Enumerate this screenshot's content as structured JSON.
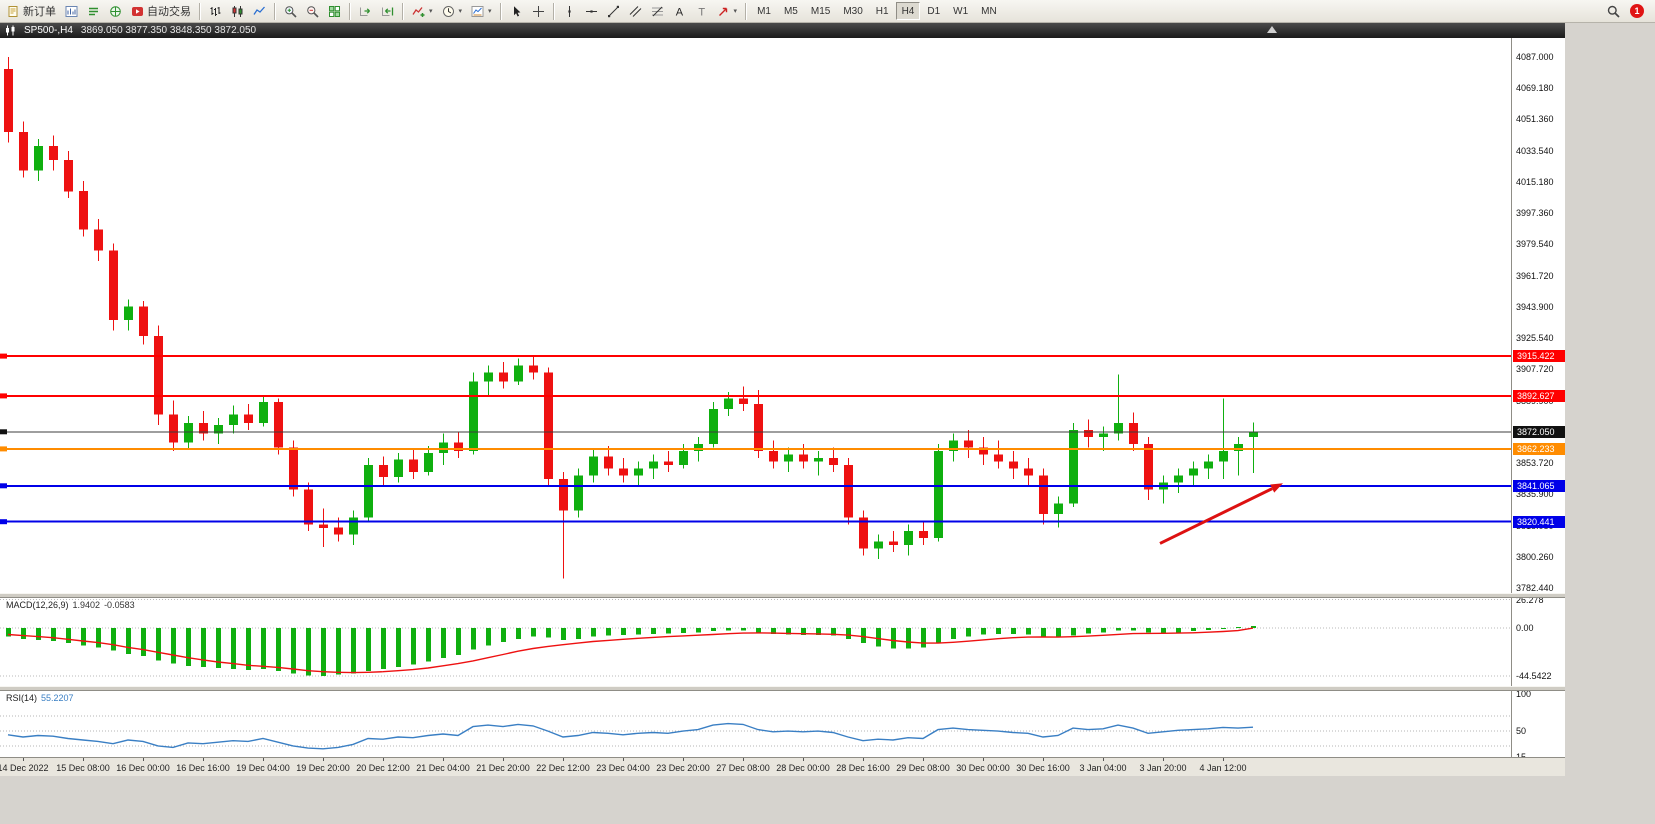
{
  "ui": {
    "toolbar": {
      "items": [
        {
          "name": "new-order-button",
          "icon": "new-order",
          "label": "新订单"
        },
        {
          "name": "chart-window-button",
          "icon": "chart-window"
        },
        {
          "name": "market-watch-button",
          "icon": "market-watch"
        },
        {
          "name": "navigator-button",
          "icon": "navigator"
        },
        {
          "name": "autotrading-button",
          "icon": "autotrading",
          "label": "自动交易"
        },
        {
          "sep": true
        },
        {
          "name": "bar-chart-button",
          "icon": "bars"
        },
        {
          "name": "candlestick-chart-button",
          "icon": "candles"
        },
        {
          "name": "line-chart-button",
          "icon": "line"
        },
        {
          "sep": true
        },
        {
          "name": "zoom-in-button",
          "icon": "zoom-in"
        },
        {
          "name": "zoom-out-button",
          "icon": "zoom-out"
        },
        {
          "name": "tile-windows-button",
          "icon": "tile"
        },
        {
          "sep": true
        },
        {
          "name": "auto-scroll-button",
          "icon": "auto-scroll"
        },
        {
          "name": "chart-shift-button",
          "icon": "chart-shift"
        },
        {
          "sep": true
        },
        {
          "name": "indicators-button",
          "icon": "indicators",
          "dropdown": true
        },
        {
          "name": "periods-button",
          "icon": "periods",
          "dropdown": true
        },
        {
          "name": "templates-button",
          "icon": "templates",
          "dropdown": true
        },
        {
          "sep": true
        },
        {
          "name": "cursor-button",
          "icon": "cursor"
        },
        {
          "name": "crosshair-button",
          "icon": "crosshair"
        },
        {
          "sep": true
        },
        {
          "name": "vertical-line-button",
          "icon": "vline"
        },
        {
          "name": "horizontal-line-button",
          "icon": "hline"
        },
        {
          "name": "trendline-button",
          "icon": "trend"
        },
        {
          "name": "equidistant-channel-button",
          "icon": "channel"
        },
        {
          "name": "fibonacci-button",
          "icon": "fibo"
        },
        {
          "name": "text-button",
          "icon": "text"
        },
        {
          "name": "text-label-button",
          "icon": "label"
        },
        {
          "name": "arrows-button",
          "icon": "arrows",
          "dropdown": true
        },
        {
          "sep": true
        }
      ],
      "timeframes": [
        "M1",
        "M5",
        "M15",
        "M30",
        "H1",
        "H4",
        "D1",
        "W1",
        "MN"
      ],
      "active_timeframe": "H4",
      "badge": "1"
    },
    "title_bar": {
      "symbol": "SP500-,H4",
      "ohlc": "3869.050 3877.350 3848.350 3872.050"
    }
  },
  "chart_data": {
    "type": "candlestick",
    "symbol": "SP500-",
    "period": "H4",
    "title_ohlc": {
      "open": "3869.050",
      "high": "3877.350",
      "low": "3848.350",
      "close": "3872.050"
    },
    "ylim": [
      3779.5,
      4098.0
    ],
    "colors": {
      "bull": "#0faf0f",
      "bear": "#ee1111",
      "background": "#ffffff"
    },
    "price_axis": {
      "labels": [
        "4087.000",
        "4069.180",
        "4051.360",
        "4033.540",
        "4015.180",
        "3997.360",
        "3979.540",
        "3961.720",
        "3943.900",
        "3925.540",
        "3907.720",
        "3889.900",
        "3871.540",
        "3853.720",
        "3835.900",
        "3818.080",
        "3800.260",
        "3782.440"
      ]
    },
    "x_labels": [
      "14 Dec 2022",
      "15 Dec 08:00",
      "16 Dec 00:00",
      "16 Dec 16:00",
      "19 Dec 04:00",
      "19 Dec 20:00",
      "20 Dec 12:00",
      "21 Dec 04:00",
      "21 Dec 20:00",
      "22 Dec 12:00",
      "23 Dec 04:00",
      "23 Dec 20:00",
      "27 Dec 08:00",
      "28 Dec 00:00",
      "28 Dec 16:00",
      "29 Dec 08:00",
      "30 Dec 00:00",
      "30 Dec 16:00",
      "3 Jan 04:00",
      "3 Jan 20:00",
      "4 Jan 12:00"
    ],
    "candles": [
      [
        4080,
        4087,
        4038,
        4044
      ],
      [
        4044,
        4050,
        4018,
        4022
      ],
      [
        4022,
        4040,
        4016,
        4036
      ],
      [
        4036,
        4042,
        4022,
        4028
      ],
      [
        4028,
        4033,
        4006,
        4010
      ],
      [
        4010,
        4016,
        3984,
        3988
      ],
      [
        3988,
        3994,
        3970,
        3976
      ],
      [
        3976,
        3980,
        3930,
        3936
      ],
      [
        3936,
        3948,
        3930,
        3944
      ],
      [
        3944,
        3947,
        3922,
        3927
      ],
      [
        3927,
        3933,
        3876,
        3882
      ],
      [
        3882,
        3890,
        3861,
        3866
      ],
      [
        3866,
        3881,
        3862,
        3877
      ],
      [
        3877,
        3884,
        3867,
        3871
      ],
      [
        3871,
        3880,
        3865,
        3876
      ],
      [
        3876,
        3887,
        3871,
        3882
      ],
      [
        3882,
        3888,
        3873,
        3877
      ],
      [
        3877,
        3893,
        3875,
        3889
      ],
      [
        3889,
        3891,
        3859,
        3863
      ],
      [
        3863,
        3867,
        3835,
        3839
      ],
      [
        3839,
        3843,
        3815,
        3819
      ],
      [
        3819,
        3828,
        3806,
        3817
      ],
      [
        3817,
        3823,
        3809,
        3813
      ],
      [
        3813,
        3827,
        3807,
        3823
      ],
      [
        3823,
        3857,
        3821,
        3853
      ],
      [
        3853,
        3858,
        3841,
        3846
      ],
      [
        3846,
        3860,
        3843,
        3856
      ],
      [
        3856,
        3862,
        3845,
        3849
      ],
      [
        3849,
        3864,
        3847,
        3860
      ],
      [
        3860,
        3871,
        3853,
        3866
      ],
      [
        3866,
        3872,
        3857,
        3861
      ],
      [
        3861,
        3906,
        3859,
        3901
      ],
      [
        3901,
        3910,
        3893,
        3906
      ],
      [
        3906,
        3912,
        3897,
        3901
      ],
      [
        3901,
        3914,
        3899,
        3910
      ],
      [
        3910,
        3916,
        3902,
        3906
      ],
      [
        3906,
        3909,
        3841,
        3845
      ],
      [
        3845,
        3849,
        3788,
        3827
      ],
      [
        3827,
        3851,
        3823,
        3847
      ],
      [
        3847,
        3862,
        3843,
        3858
      ],
      [
        3858,
        3864,
        3847,
        3851
      ],
      [
        3851,
        3857,
        3843,
        3847
      ],
      [
        3847,
        3855,
        3841,
        3851
      ],
      [
        3851,
        3859,
        3845,
        3855
      ],
      [
        3855,
        3861,
        3849,
        3853
      ],
      [
        3853,
        3865,
        3851,
        3861
      ],
      [
        3861,
        3869,
        3855,
        3865
      ],
      [
        3865,
        3889,
        3863,
        3885
      ],
      [
        3885,
        3895,
        3881,
        3891
      ],
      [
        3891,
        3898,
        3884,
        3888
      ],
      [
        3888,
        3896,
        3857,
        3861
      ],
      [
        3861,
        3867,
        3851,
        3855
      ],
      [
        3855,
        3863,
        3849,
        3859
      ],
      [
        3859,
        3865,
        3851,
        3855
      ],
      [
        3855,
        3861,
        3847,
        3857
      ],
      [
        3857,
        3863,
        3849,
        3853
      ],
      [
        3853,
        3857,
        3819,
        3823
      ],
      [
        3823,
        3827,
        3801,
        3805
      ],
      [
        3805,
        3813,
        3799,
        3809
      ],
      [
        3809,
        3815,
        3803,
        3807
      ],
      [
        3807,
        3819,
        3801,
        3815
      ],
      [
        3815,
        3821,
        3807,
        3811
      ],
      [
        3811,
        3865,
        3809,
        3861
      ],
      [
        3861,
        3871,
        3855,
        3867
      ],
      [
        3867,
        3873,
        3857,
        3863
      ],
      [
        3863,
        3869,
        3853,
        3859
      ],
      [
        3859,
        3867,
        3851,
        3855
      ],
      [
        3855,
        3861,
        3845,
        3851
      ],
      [
        3851,
        3857,
        3841,
        3847
      ],
      [
        3847,
        3851,
        3819,
        3825
      ],
      [
        3825,
        3835,
        3817,
        3831
      ],
      [
        3831,
        3877,
        3829,
        3873
      ],
      [
        3873,
        3879,
        3863,
        3869
      ],
      [
        3869,
        3875,
        3861,
        3871
      ],
      [
        3871,
        3905,
        3867,
        3877
      ],
      [
        3877,
        3883,
        3861,
        3865
      ],
      [
        3865,
        3869,
        3833,
        3839
      ],
      [
        3839,
        3847,
        3831,
        3843
      ],
      [
        3843,
        3851,
        3837,
        3847
      ],
      [
        3847,
        3855,
        3841,
        3851
      ],
      [
        3851,
        3859,
        3845,
        3855
      ],
      [
        3855,
        3891,
        3845,
        3861
      ],
      [
        3861,
        3869,
        3847,
        3865
      ],
      [
        3869.05,
        3877.35,
        3848.35,
        3872.05
      ]
    ],
    "hlines": [
      {
        "label": "3915.422",
        "price": 3915.422,
        "color": "#ff0000"
      },
      {
        "label": "3892.627",
        "price": 3892.627,
        "color": "#ff0000"
      },
      {
        "label": "3862.233",
        "price": 3862.233,
        "color": "#ff8c00"
      },
      {
        "label": "3841.065",
        "price": 3841.065,
        "color": "#0000e8"
      },
      {
        "label": "3820.441",
        "price": 3820.441,
        "color": "#0000e8"
      }
    ],
    "current_price": {
      "label": "3872.050",
      "price": 3872.05,
      "color": "#3c3c3c",
      "tag_bg": "#111111"
    },
    "annotation_arrow": {
      "color": "#dd1111",
      "bar_from": 76.8,
      "price_from": 3808,
      "bar_to": 85,
      "price_to": 3842.5
    },
    "indicators": [
      {
        "name": "MACD",
        "label": "MACD(12,26,9)",
        "value_main": "1.9402",
        "value_signal": "-0.0583",
        "axis_labels": [
          "26.278",
          "0.00",
          "-44.5422"
        ],
        "axis_values": [
          26.278,
          0,
          -44.5422
        ],
        "histogram_color": "#0faf0f",
        "signal_color": "#ee1111",
        "histogram": [
          -8,
          -10,
          -11,
          -12,
          -14,
          -16,
          -18,
          -21,
          -24,
          -26,
          -30,
          -33,
          -35,
          -36,
          -37,
          -38,
          -39,
          -38,
          -40,
          -42,
          -44,
          -44.5,
          -43,
          -42,
          -40,
          -38,
          -36,
          -34,
          -31,
          -28,
          -25,
          -20,
          -16,
          -13,
          -10,
          -8,
          -9,
          -11,
          -10,
          -8,
          -7,
          -6.5,
          -6,
          -5.5,
          -5,
          -4.5,
          -4,
          -3,
          -2.5,
          -2.5,
          -4,
          -5.5,
          -6,
          -6.5,
          -6.5,
          -7,
          -10,
          -14,
          -17,
          -19,
          -19,
          -18,
          -14,
          -10,
          -8,
          -6,
          -5.5,
          -5.5,
          -6,
          -8,
          -9,
          -7,
          -5,
          -4,
          -2.5,
          -2.5,
          -4,
          -4.5,
          -4,
          -3,
          -2,
          -0.5,
          1.0,
          1.9402
        ],
        "signal": [
          -6,
          -7,
          -8,
          -9,
          -10.5,
          -12,
          -13.5,
          -15.5,
          -18,
          -20,
          -22.5,
          -25,
          -27.5,
          -29.5,
          -31.5,
          -33,
          -34.5,
          -35.5,
          -36.5,
          -38,
          -39.5,
          -40.5,
          -41,
          -41.3,
          -41,
          -40.5,
          -39.5,
          -38.5,
          -37,
          -35,
          -33,
          -30.5,
          -27.5,
          -24.5,
          -21.5,
          -19,
          -17,
          -15.5,
          -14,
          -12.5,
          -11.5,
          -10.5,
          -9.5,
          -8.7,
          -8,
          -7.3,
          -6.7,
          -6,
          -5.3,
          -4.7,
          -4.5,
          -4.7,
          -5,
          -5.3,
          -5.5,
          -5.8,
          -6.6,
          -8,
          -9.8,
          -11.6,
          -13,
          -14,
          -14,
          -13.2,
          -12.2,
          -11,
          -9.9,
          -9,
          -8.4,
          -8.3,
          -8.4,
          -8.1,
          -7.5,
          -6.8,
          -5.9,
          -5.2,
          -5,
          -4.9,
          -4.7,
          -4.4,
          -3.9,
          -3.2,
          -2.4,
          -0.0583
        ]
      },
      {
        "name": "RSI",
        "label": "RSI(14)",
        "value": "55.2207",
        "axis_labels": [
          "100",
          "50",
          "15"
        ],
        "axis_values": [
          100,
          50,
          15
        ],
        "line_color": "#3a7fc4",
        "levels": [
          70,
          50,
          30
        ],
        "values": [
          45,
          42,
          44,
          43,
          40,
          38,
          36,
          33,
          38,
          36,
          30,
          28,
          34,
          33,
          35,
          37,
          36,
          40,
          35,
          30,
          27,
          26,
          28,
          32,
          40,
          39,
          42,
          41,
          44,
          46,
          44,
          56,
          58,
          56,
          59,
          57,
          50,
          42,
          44,
          48,
          47,
          45,
          47,
          48,
          47,
          50,
          52,
          58,
          60,
          59,
          52,
          49,
          50,
          49,
          50,
          48,
          42,
          37,
          39,
          38,
          41,
          40,
          52,
          54,
          52,
          51,
          50,
          48,
          47,
          42,
          44,
          54,
          52,
          53,
          58,
          54,
          47,
          49,
          51,
          52,
          53,
          55,
          54,
          55.22
        ]
      }
    ]
  }
}
